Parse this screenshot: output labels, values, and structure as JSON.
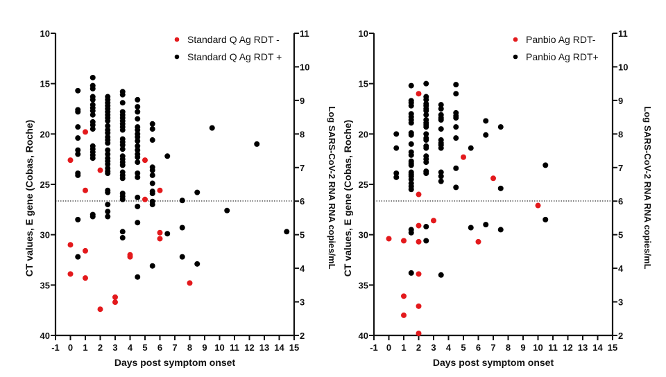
{
  "chart_data": [
    {
      "type": "scatter",
      "title": "",
      "xlabel": "Days post symptom onset",
      "ylabel": "CT values, E  gene (Cobas, Roche)",
      "y2label": "Log SARS-CoV-2 RNA RNA copies/mL",
      "xlim": [
        -1,
        15
      ],
      "ylim": [
        10,
        40
      ],
      "y_inverted": true,
      "y2lim": [
        2,
        11
      ],
      "xticks": [
        "-1",
        "0",
        "1",
        "2",
        "3",
        "4",
        "5",
        "6",
        "7",
        "8",
        "9",
        "10",
        "11",
        "12",
        "13",
        "14",
        "15"
      ],
      "yticks": [
        "10",
        "15",
        "20",
        "25",
        "30",
        "35",
        "40"
      ],
      "y2ticks": [
        "11",
        "10",
        "9",
        "8",
        "7",
        "6",
        "5",
        "4",
        "3",
        "2"
      ],
      "threshold_ct": 26.65,
      "legend_position": "top-right",
      "series": [
        {
          "name": "Standard Q Ag RDT -",
          "color": "#e3191c",
          "points": [
            [
              0,
              22.6
            ],
            [
              0,
              31.0
            ],
            [
              0,
              33.9
            ],
            [
              1,
              19.8
            ],
            [
              1,
              25.6
            ],
            [
              1,
              31.6
            ],
            [
              1,
              34.3
            ],
            [
              2,
              23.6
            ],
            [
              2,
              37.4
            ],
            [
              3,
              36.2
            ],
            [
              3,
              36.7
            ],
            [
              4,
              32.0
            ],
            [
              4,
              32.2
            ],
            [
              5,
              22.6
            ],
            [
              5,
              26.5
            ],
            [
              6,
              25.6
            ],
            [
              6,
              29.8
            ],
            [
              6,
              30.4
            ],
            [
              8,
              34.8
            ]
          ]
        },
        {
          "name": "Standard Q Ag RDT +",
          "color": "#000000",
          "points": [
            [
              0.5,
              15.7
            ],
            [
              0.5,
              17.6
            ],
            [
              0.5,
              17.8
            ],
            [
              0.5,
              19.3
            ],
            [
              0.5,
              20.4
            ],
            [
              0.5,
              21.6
            ],
            [
              0.5,
              22.0
            ],
            [
              0.5,
              23.9
            ],
            [
              0.5,
              24.1
            ],
            [
              0.5,
              28.5
            ],
            [
              0.5,
              32.2
            ],
            [
              1.5,
              14.4
            ],
            [
              1.5,
              15.2
            ],
            [
              1.5,
              15.5
            ],
            [
              1.5,
              16.3
            ],
            [
              1.5,
              16.6
            ],
            [
              1.5,
              17.1
            ],
            [
              1.5,
              17.4
            ],
            [
              1.5,
              17.7
            ],
            [
              1.5,
              18.1
            ],
            [
              1.5,
              18.8
            ],
            [
              1.5,
              19.1
            ],
            [
              1.5,
              19.5
            ],
            [
              1.5,
              21.2
            ],
            [
              1.5,
              21.5
            ],
            [
              1.5,
              21.8
            ],
            [
              1.5,
              22.1
            ],
            [
              1.5,
              22.4
            ],
            [
              1.5,
              28.0
            ],
            [
              1.5,
              28.2
            ],
            [
              2.5,
              16.3
            ],
            [
              2.5,
              16.6
            ],
            [
              2.5,
              16.9
            ],
            [
              2.5,
              17.2
            ],
            [
              2.5,
              17.5
            ],
            [
              2.5,
              17.8
            ],
            [
              2.5,
              18.1
            ],
            [
              2.5,
              18.4
            ],
            [
              2.5,
              18.7
            ],
            [
              2.5,
              19.2
            ],
            [
              2.5,
              19.6
            ],
            [
              2.5,
              19.9
            ],
            [
              2.5,
              20.3
            ],
            [
              2.5,
              20.6
            ],
            [
              2.5,
              20.9
            ],
            [
              2.5,
              21.6
            ],
            [
              2.5,
              22.0
            ],
            [
              2.5,
              22.4
            ],
            [
              2.5,
              22.7
            ],
            [
              2.5,
              23.0
            ],
            [
              2.5,
              23.4
            ],
            [
              2.5,
              23.7
            ],
            [
              2.5,
              23.9
            ],
            [
              2.5,
              25.6
            ],
            [
              2.5,
              25.8
            ],
            [
              2.5,
              27.0
            ],
            [
              2.5,
              27.7
            ],
            [
              2.5,
              28.2
            ],
            [
              3.5,
              15.8
            ],
            [
              3.5,
              16.1
            ],
            [
              3.5,
              16.9
            ],
            [
              3.5,
              17.8
            ],
            [
              3.5,
              18.1
            ],
            [
              3.5,
              18.4
            ],
            [
              3.5,
              18.7
            ],
            [
              3.5,
              19.0
            ],
            [
              3.5,
              19.3
            ],
            [
              3.5,
              19.6
            ],
            [
              3.5,
              20.5
            ],
            [
              3.5,
              20.8
            ],
            [
              3.5,
              21.1
            ],
            [
              3.5,
              21.5
            ],
            [
              3.5,
              22.2
            ],
            [
              3.5,
              22.5
            ],
            [
              3.5,
              22.8
            ],
            [
              3.5,
              23.1
            ],
            [
              3.5,
              23.8
            ],
            [
              3.5,
              24.1
            ],
            [
              3.5,
              24.4
            ],
            [
              3.5,
              25.9
            ],
            [
              3.5,
              26.2
            ],
            [
              3.5,
              26.5
            ],
            [
              3.5,
              29.7
            ],
            [
              3.5,
              30.3
            ],
            [
              4.5,
              16.6
            ],
            [
              4.5,
              17.3
            ],
            [
              4.5,
              17.8
            ],
            [
              4.5,
              18.5
            ],
            [
              4.5,
              19.3
            ],
            [
              4.5,
              19.6
            ],
            [
              4.5,
              20.0
            ],
            [
              4.5,
              20.3
            ],
            [
              4.5,
              20.7
            ],
            [
              4.5,
              21.2
            ],
            [
              4.5,
              21.6
            ],
            [
              4.5,
              22.0
            ],
            [
              4.5,
              22.3
            ],
            [
              4.5,
              22.8
            ],
            [
              4.5,
              23.9
            ],
            [
              4.5,
              24.3
            ],
            [
              4.5,
              26.3
            ],
            [
              4.5,
              27.2
            ],
            [
              4.5,
              28.8
            ],
            [
              4.5,
              34.2
            ],
            [
              5.5,
              19.0
            ],
            [
              5.5,
              19.5
            ],
            [
              5.5,
              20.6
            ],
            [
              5.5,
              23.3
            ],
            [
              5.5,
              23.6
            ],
            [
              5.5,
              24.1
            ],
            [
              5.5,
              24.9
            ],
            [
              5.5,
              25.7
            ],
            [
              5.5,
              25.9
            ],
            [
              5.5,
              26.7
            ],
            [
              5.5,
              27.0
            ],
            [
              5.5,
              33.1
            ],
            [
              6.5,
              22.2
            ],
            [
              6.5,
              29.9
            ],
            [
              7.5,
              26.6
            ],
            [
              7.5,
              29.3
            ],
            [
              7.5,
              32.2
            ],
            [
              8.5,
              25.8
            ],
            [
              8.5,
              32.9
            ],
            [
              9.5,
              19.4
            ],
            [
              10.5,
              27.6
            ],
            [
              12.5,
              21.0
            ],
            [
              14.5,
              29.7
            ]
          ]
        }
      ]
    },
    {
      "type": "scatter",
      "title": "",
      "xlabel": "Days post symptom onset",
      "ylabel": "CT values, E  gene (Cobas, Roche)",
      "y2label": "Log SARS-CoV-2 RNA RNA copies/mL",
      "xlim": [
        -1,
        15
      ],
      "ylim": [
        10,
        40
      ],
      "y_inverted": true,
      "y2lim": [
        2,
        11
      ],
      "xticks": [
        "-1",
        "0",
        "1",
        "2",
        "3",
        "4",
        "5",
        "6",
        "7",
        "8",
        "9",
        "10",
        "11",
        "12",
        "13",
        "14",
        "15"
      ],
      "yticks": [
        "10",
        "15",
        "20",
        "25",
        "30",
        "35",
        "40"
      ],
      "y2ticks": [
        "11",
        "10",
        "9",
        "8",
        "7",
        "6",
        "5",
        "4",
        "3",
        "2"
      ],
      "threshold_ct": 26.65,
      "legend_position": "top-right",
      "series": [
        {
          "name": "Panbio Ag RDT-",
          "color": "#e3191c",
          "points": [
            [
              2,
              16.0
            ],
            [
              5,
              22.3
            ],
            [
              7,
              24.4
            ],
            [
              2,
              26.0
            ],
            [
              10,
              27.1
            ],
            [
              3,
              28.6
            ],
            [
              2,
              29.1
            ],
            [
              0,
              30.4
            ],
            [
              1,
              30.6
            ],
            [
              2,
              30.7
            ],
            [
              6,
              30.7
            ],
            [
              2,
              33.9
            ],
            [
              1,
              36.1
            ],
            [
              2,
              37.1
            ],
            [
              1,
              38.0
            ],
            [
              2,
              39.8
            ]
          ]
        },
        {
          "name": "Panbio Ag RDT+",
          "color": "#000000",
          "points": [
            [
              0.5,
              20.0
            ],
            [
              0.5,
              21.4
            ],
            [
              0.5,
              23.9
            ],
            [
              0.5,
              24.3
            ],
            [
              1.5,
              15.2
            ],
            [
              1.5,
              16.7
            ],
            [
              1.5,
              16.9
            ],
            [
              1.5,
              17.2
            ],
            [
              1.5,
              18.0
            ],
            [
              1.5,
              18.3
            ],
            [
              1.5,
              18.6
            ],
            [
              1.5,
              18.9
            ],
            [
              1.5,
              19.9
            ],
            [
              1.5,
              20.1
            ],
            [
              1.5,
              21.0
            ],
            [
              1.5,
              21.8
            ],
            [
              1.5,
              22.1
            ],
            [
              1.5,
              22.7
            ],
            [
              1.5,
              22.9
            ],
            [
              1.5,
              23.1
            ],
            [
              1.5,
              23.8
            ],
            [
              1.5,
              24.0
            ],
            [
              1.5,
              24.2
            ],
            [
              1.5,
              24.5
            ],
            [
              1.5,
              24.9
            ],
            [
              1.5,
              25.2
            ],
            [
              1.5,
              25.5
            ],
            [
              1.5,
              29.5
            ],
            [
              1.5,
              29.8
            ],
            [
              1.5,
              33.8
            ],
            [
              2.5,
              15.0
            ],
            [
              2.5,
              16.3
            ],
            [
              2.5,
              16.6
            ],
            [
              2.5,
              17.0
            ],
            [
              2.5,
              17.2
            ],
            [
              2.5,
              17.5
            ],
            [
              2.5,
              17.7
            ],
            [
              2.5,
              18.1
            ],
            [
              2.5,
              18.6
            ],
            [
              2.5,
              18.9
            ],
            [
              2.5,
              19.1
            ],
            [
              2.5,
              19.3
            ],
            [
              2.5,
              20.0
            ],
            [
              2.5,
              20.4
            ],
            [
              2.5,
              20.6
            ],
            [
              2.5,
              21.2
            ],
            [
              2.5,
              21.4
            ],
            [
              2.5,
              22.2
            ],
            [
              2.5,
              22.5
            ],
            [
              2.5,
              22.8
            ],
            [
              2.5,
              23.7
            ],
            [
              2.5,
              23.9
            ],
            [
              2.5,
              29.2
            ],
            [
              2.5,
              30.6
            ],
            [
              3.5,
              17.1
            ],
            [
              3.5,
              17.5
            ],
            [
              3.5,
              18.1
            ],
            [
              3.5,
              18.4
            ],
            [
              3.5,
              18.6
            ],
            [
              3.5,
              19.5
            ],
            [
              3.5,
              20.6
            ],
            [
              3.5,
              20.9
            ],
            [
              3.5,
              21.1
            ],
            [
              3.5,
              21.4
            ],
            [
              3.5,
              23.8
            ],
            [
              3.5,
              24.2
            ],
            [
              3.5,
              24.7
            ],
            [
              3.5,
              34.0
            ],
            [
              4.5,
              15.1
            ],
            [
              4.5,
              16.0
            ],
            [
              4.5,
              17.9
            ],
            [
              4.5,
              18.2
            ],
            [
              4.5,
              18.4
            ],
            [
              4.5,
              19.3
            ],
            [
              4.5,
              20.4
            ],
            [
              4.5,
              23.4
            ],
            [
              4.5,
              25.3
            ],
            [
              5.5,
              21.4
            ],
            [
              5.5,
              29.3
            ],
            [
              6.5,
              18.7
            ],
            [
              6.5,
              20.1
            ],
            [
              6.5,
              29.0
            ],
            [
              7.5,
              19.3
            ],
            [
              7.5,
              25.4
            ],
            [
              7.5,
              29.5
            ],
            [
              10.5,
              23.1
            ],
            [
              10.5,
              28.5
            ]
          ]
        }
      ]
    }
  ]
}
